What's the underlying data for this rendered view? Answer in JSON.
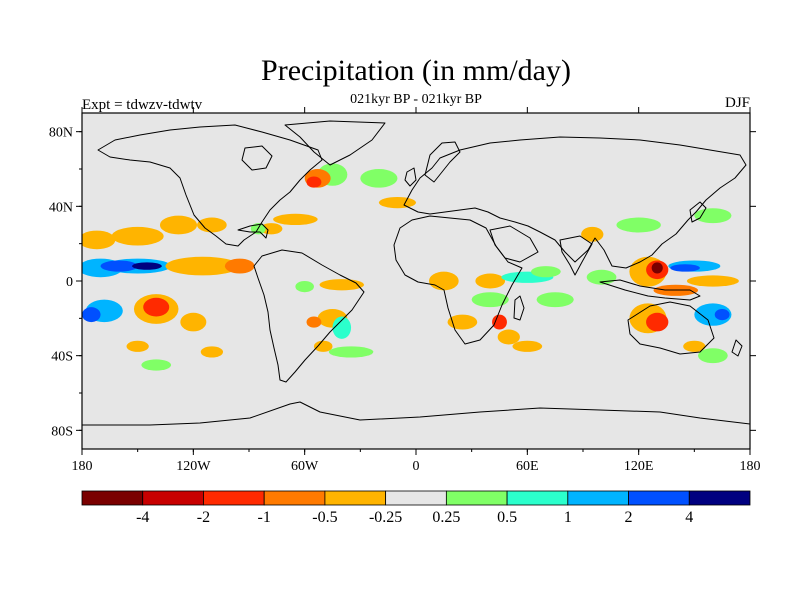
{
  "chart_data": {
    "type": "heatmap",
    "title": "Precipitation (in mm/day)",
    "subtitle": "021kyr BP - 021kyr BP",
    "left_label": "Expt = tdwzv-tdwtv",
    "right_label": "DJF",
    "xlim": [
      -180,
      180
    ],
    "ylim": [
      -90,
      90
    ],
    "x_ticks": [
      {
        "value": -180,
        "label": "180"
      },
      {
        "value": -120,
        "label": "120W"
      },
      {
        "value": -60,
        "label": "60W"
      },
      {
        "value": 0,
        "label": "0"
      },
      {
        "value": 60,
        "label": "60E"
      },
      {
        "value": 120,
        "label": "120E"
      },
      {
        "value": 180,
        "label": "180"
      }
    ],
    "y_ticks": [
      {
        "value": 80,
        "label": "80N"
      },
      {
        "value": 40,
        "label": "40N"
      },
      {
        "value": 0,
        "label": "0"
      },
      {
        "value": -40,
        "label": "40S"
      },
      {
        "value": -80,
        "label": "80S"
      }
    ],
    "colorbar": {
      "colors": [
        "#7a0000",
        "#c80000",
        "#ff2a00",
        "#ff7a00",
        "#ffb400",
        "#e6e6e6",
        "#80ff66",
        "#2bffcc",
        "#00b4ff",
        "#0050ff",
        "#000080"
      ],
      "labels": [
        "-4",
        "-2",
        "-1",
        "-0.5",
        "-0.25",
        "0.25",
        "0.5",
        "1",
        "2",
        "4"
      ]
    },
    "anomalies": [
      {
        "lon": -172,
        "lat": 22,
        "rlon": 10,
        "rlat": 5,
        "level": 4
      },
      {
        "lon": -150,
        "lat": 24,
        "rlon": 14,
        "rlat": 5,
        "level": 4
      },
      {
        "lon": -128,
        "lat": 30,
        "rlon": 10,
        "rlat": 5,
        "level": 4
      },
      {
        "lon": -110,
        "lat": 30,
        "rlon": 8,
        "rlat": 4,
        "level": 4
      },
      {
        "lon": -170,
        "lat": 7,
        "rlon": 12,
        "rlat": 5,
        "level": 8
      },
      {
        "lon": -150,
        "lat": 8,
        "rlon": 18,
        "rlat": 4,
        "level": 8
      },
      {
        "lon": -160,
        "lat": 8,
        "rlon": 10,
        "rlat": 3,
        "level": 9
      },
      {
        "lon": -145,
        "lat": 8,
        "rlon": 8,
        "rlat": 2,
        "level": 10
      },
      {
        "lon": -115,
        "lat": 8,
        "rlon": 20,
        "rlat": 5,
        "level": 4
      },
      {
        "lon": -95,
        "lat": 8,
        "rlon": 8,
        "rlat": 4,
        "level": 3
      },
      {
        "lon": -168,
        "lat": -16,
        "rlon": 10,
        "rlat": 6,
        "level": 8
      },
      {
        "lon": -175,
        "lat": -18,
        "rlon": 5,
        "rlat": 4,
        "level": 9
      },
      {
        "lon": -140,
        "lat": -15,
        "rlon": 12,
        "rlat": 8,
        "level": 4
      },
      {
        "lon": -140,
        "lat": -14,
        "rlon": 7,
        "rlat": 5,
        "level": 2
      },
      {
        "lon": -120,
        "lat": -22,
        "rlon": 7,
        "rlat": 5,
        "level": 4
      },
      {
        "lon": -150,
        "lat": -35,
        "rlon": 6,
        "rlat": 3,
        "level": 4
      },
      {
        "lon": -140,
        "lat": -45,
        "rlon": 8,
        "rlat": 3,
        "level": 6
      },
      {
        "lon": -110,
        "lat": -38,
        "rlon": 6,
        "rlat": 3,
        "level": 4
      },
      {
        "lon": -45,
        "lat": 57,
        "rlon": 8,
        "rlat": 6,
        "level": 6
      },
      {
        "lon": -53,
        "lat": 55,
        "rlon": 7,
        "rlat": 5,
        "level": 3
      },
      {
        "lon": -55,
        "lat": 53,
        "rlon": 4,
        "rlat": 3,
        "level": 2
      },
      {
        "lon": -20,
        "lat": 55,
        "rlon": 10,
        "rlat": 5,
        "level": 6
      },
      {
        "lon": -10,
        "lat": 42,
        "rlon": 10,
        "rlat": 3,
        "level": 4
      },
      {
        "lon": -65,
        "lat": 33,
        "rlon": 12,
        "rlat": 3,
        "level": 4
      },
      {
        "lon": -78,
        "lat": 28,
        "rlon": 6,
        "rlat": 3,
        "level": 4
      },
      {
        "lon": -85,
        "lat": 28,
        "rlon": 4,
        "rlat": 3,
        "level": 6
      },
      {
        "lon": -40,
        "lat": -2,
        "rlon": 12,
        "rlat": 3,
        "level": 4
      },
      {
        "lon": -60,
        "lat": -3,
        "rlon": 5,
        "rlat": 3,
        "level": 6
      },
      {
        "lon": -45,
        "lat": -20,
        "rlon": 8,
        "rlat": 5,
        "level": 4
      },
      {
        "lon": -55,
        "lat": -22,
        "rlon": 4,
        "rlat": 3,
        "level": 3
      },
      {
        "lon": -40,
        "lat": -25,
        "rlon": 5,
        "rlat": 6,
        "level": 7
      },
      {
        "lon": -35,
        "lat": -38,
        "rlon": 12,
        "rlat": 3,
        "level": 6
      },
      {
        "lon": -50,
        "lat": -35,
        "rlon": 5,
        "rlat": 3,
        "level": 4
      },
      {
        "lon": 15,
        "lat": 0,
        "rlon": 8,
        "rlat": 5,
        "level": 4
      },
      {
        "lon": 40,
        "lat": 0,
        "rlon": 8,
        "rlat": 4,
        "level": 4
      },
      {
        "lon": 60,
        "lat": 2,
        "rlon": 14,
        "rlat": 3,
        "level": 7
      },
      {
        "lon": 70,
        "lat": 5,
        "rlon": 8,
        "rlat": 3,
        "level": 6
      },
      {
        "lon": 25,
        "lat": -22,
        "rlon": 8,
        "rlat": 4,
        "level": 4
      },
      {
        "lon": 40,
        "lat": -10,
        "rlon": 10,
        "rlat": 4,
        "level": 6
      },
      {
        "lon": 45,
        "lat": -22,
        "rlon": 4,
        "rlat": 4,
        "level": 2
      },
      {
        "lon": 50,
        "lat": -30,
        "rlon": 6,
        "rlat": 4,
        "level": 4
      },
      {
        "lon": 75,
        "lat": -10,
        "rlon": 10,
        "rlat": 4,
        "level": 6
      },
      {
        "lon": 60,
        "lat": -35,
        "rlon": 8,
        "rlat": 3,
        "level": 4
      },
      {
        "lon": 100,
        "lat": 2,
        "rlon": 8,
        "rlat": 4,
        "level": 6
      },
      {
        "lon": 125,
        "lat": 5,
        "rlon": 10,
        "rlat": 8,
        "level": 4
      },
      {
        "lon": 130,
        "lat": 6,
        "rlon": 6,
        "rlat": 5,
        "level": 2
      },
      {
        "lon": 130,
        "lat": 7,
        "rlon": 3,
        "rlat": 3,
        "level": 0
      },
      {
        "lon": 150,
        "lat": 8,
        "rlon": 14,
        "rlat": 3,
        "level": 8
      },
      {
        "lon": 145,
        "lat": 7,
        "rlon": 8,
        "rlat": 2,
        "level": 9
      },
      {
        "lon": 160,
        "lat": 0,
        "rlon": 14,
        "rlat": 3,
        "level": 4
      },
      {
        "lon": 140,
        "lat": -5,
        "rlon": 12,
        "rlat": 3,
        "level": 3
      },
      {
        "lon": 125,
        "lat": -20,
        "rlon": 10,
        "rlat": 8,
        "level": 4
      },
      {
        "lon": 130,
        "lat": -22,
        "rlon": 6,
        "rlat": 5,
        "level": 2
      },
      {
        "lon": 160,
        "lat": -18,
        "rlon": 10,
        "rlat": 6,
        "level": 8
      },
      {
        "lon": 165,
        "lat": -18,
        "rlon": 4,
        "rlat": 3,
        "level": 9
      },
      {
        "lon": 150,
        "lat": -35,
        "rlon": 6,
        "rlat": 3,
        "level": 4
      },
      {
        "lon": 160,
        "lat": -40,
        "rlon": 8,
        "rlat": 4,
        "level": 6
      },
      {
        "lon": 120,
        "lat": 30,
        "rlon": 12,
        "rlat": 4,
        "level": 6
      },
      {
        "lon": 160,
        "lat": 35,
        "rlon": 10,
        "rlat": 4,
        "level": 6
      },
      {
        "lon": 95,
        "lat": 25,
        "rlon": 6,
        "rlat": 4,
        "level": 4
      }
    ]
  }
}
